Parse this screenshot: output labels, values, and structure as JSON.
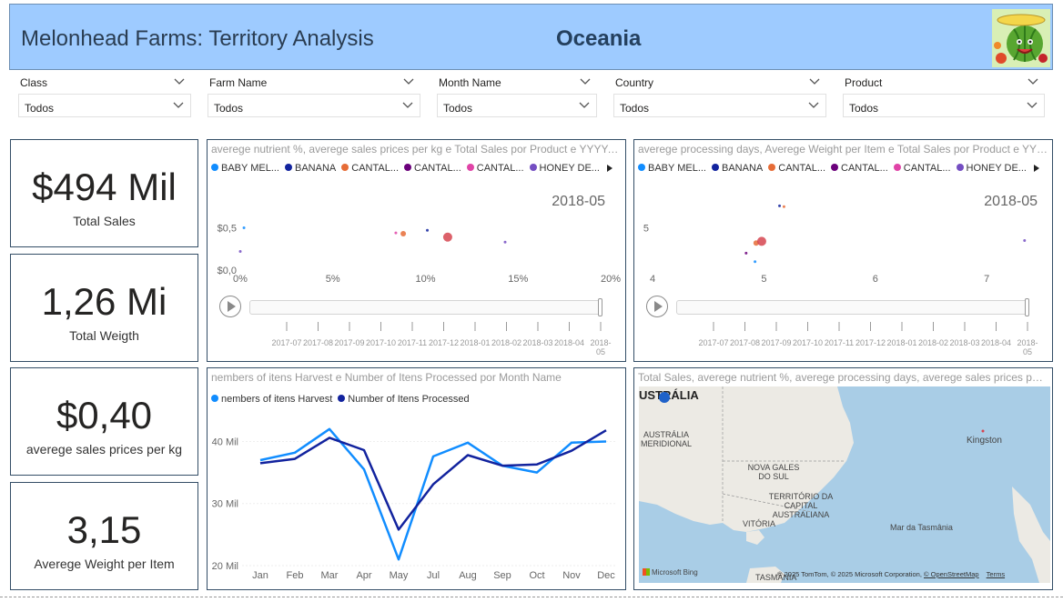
{
  "header": {
    "title": "Melonhead Farms: Territory Analysis",
    "region": "Oceania"
  },
  "slicers": [
    {
      "label": "Class",
      "value": "Todos"
    },
    {
      "label": "Farm Name",
      "value": "Todos"
    },
    {
      "label": "Month Name",
      "value": "Todos"
    },
    {
      "label": "Country",
      "value": "Todos"
    },
    {
      "label": "Product",
      "value": "Todos"
    }
  ],
  "cards": [
    {
      "value": "$494 Mil",
      "label": "Total Sales"
    },
    {
      "value": "1,26 Mi",
      "label": "Total Weigth"
    },
    {
      "value": "$0,40",
      "label": "averege sales prices per kg"
    },
    {
      "value": "3,15",
      "label": "Averege Weight per Item"
    }
  ],
  "legend_products": [
    {
      "name": "BABY MEL...",
      "color": "#118dff"
    },
    {
      "name": "BANANA",
      "color": "#12239e"
    },
    {
      "name": "CANTAL...",
      "color": "#e66c37"
    },
    {
      "name": "CANTAL...",
      "color": "#6b007b"
    },
    {
      "name": "CANTAL...",
      "color": "#e044a7"
    },
    {
      "name": "HONEY DE...",
      "color": "#744ec2"
    }
  ],
  "timeline": {
    "ticks": [
      "2017-07",
      "2017-08",
      "2017-09",
      "2017-10",
      "2017-11",
      "2017-12",
      "2018-01",
      "2018-02",
      "2018-03",
      "2018-04",
      "2018-05"
    ],
    "current_frame": "2018-05",
    "position": 1.0
  },
  "scatter1": {
    "title": "averege nutrient %, averege sales prices per kg e Total Sales por Product e YYYY-MM",
    "chart_data": {
      "type": "scatter",
      "x_ticks": [
        "0%",
        "5%",
        "10%",
        "15%",
        "20%"
      ],
      "y_ticks": [
        "$0,0",
        "$0,5"
      ],
      "xlim": [
        0,
        20
      ],
      "ylim": [
        0,
        1
      ],
      "points": [
        {
          "x": 0.2,
          "y": 0.5,
          "size": 1.5,
          "color": "#118dff"
        },
        {
          "x": 0.0,
          "y": 0.22,
          "size": 1.5,
          "color": "#744ec2"
        },
        {
          "x": 8.4,
          "y": 0.44,
          "size": 1.5,
          "color": "#e044a7"
        },
        {
          "x": 8.8,
          "y": 0.43,
          "size": 3,
          "color": "#e66c37"
        },
        {
          "x": 10.1,
          "y": 0.47,
          "size": 1.5,
          "color": "#12239e"
        },
        {
          "x": 11.2,
          "y": 0.39,
          "size": 5,
          "color": "#d64550"
        },
        {
          "x": 14.3,
          "y": 0.33,
          "size": 1.5,
          "color": "#744ec2"
        }
      ]
    }
  },
  "scatter2": {
    "title": "averege processing days, Averege Weight per Item e Total Sales por Product e YYYY-MM",
    "chart_data": {
      "type": "scatter",
      "x_ticks": [
        "4",
        "5",
        "6",
        "7"
      ],
      "y_ticks": [
        "5"
      ],
      "xlim": [
        4,
        7.35
      ],
      "ylim": [
        0,
        10
      ],
      "points": [
        {
          "x": 5.14,
          "y": 7.6,
          "size": 1.5,
          "color": "#12239e"
        },
        {
          "x": 5.18,
          "y": 7.5,
          "size": 1.5,
          "color": "#e66c37"
        },
        {
          "x": 4.93,
          "y": 3.2,
          "size": 3,
          "color": "#e66c37"
        },
        {
          "x": 4.98,
          "y": 3.4,
          "size": 5,
          "color": "#d64550"
        },
        {
          "x": 4.84,
          "y": 2.0,
          "size": 1.5,
          "color": "#6b007b"
        },
        {
          "x": 4.92,
          "y": 1.0,
          "size": 1.5,
          "color": "#118dff"
        },
        {
          "x": 7.34,
          "y": 3.5,
          "size": 1.5,
          "color": "#744ec2"
        }
      ]
    }
  },
  "line_chart": {
    "title": "nembers of itens Harvest e Number of Itens Processed por Month Name",
    "chart_data": {
      "type": "line",
      "categories": [
        "Jan",
        "Feb",
        "Mar",
        "Apr",
        "May",
        "Jul",
        "Aug",
        "Sep",
        "Oct",
        "Nov",
        "Dec"
      ],
      "y_ticks": [
        "20 Mil",
        "30 Mil",
        "40 Mil"
      ],
      "ylim": [
        20,
        43
      ],
      "series": [
        {
          "name": "nembers of itens Harvest",
          "color": "#118dff",
          "values": [
            37.0,
            38.2,
            42.0,
            35.5,
            21.0,
            37.6,
            39.8,
            36.1,
            35.0,
            39.8,
            40.0
          ]
        },
        {
          "name": "Number of Itens Processed",
          "color": "#12239e",
          "values": [
            36.5,
            37.2,
            40.6,
            38.6,
            25.8,
            33.1,
            37.8,
            36.1,
            36.3,
            38.5,
            41.8
          ]
        }
      ]
    }
  },
  "map": {
    "title": "Total Sales, averege nutrient %, averege processing days, averege sales prices per kg por Country",
    "labels": [
      {
        "text": "USTRÁLIA"
      },
      {
        "text": "AUSTRÁLIA MERIDIONAL"
      },
      {
        "text": "NOVA GALES DO SUL"
      },
      {
        "text": "TERRITÓRIO DA CAPITAL AUSTRALIANA"
      },
      {
        "text": "VITÓRIA"
      },
      {
        "text": "TASMÂNIA"
      },
      {
        "text": "Kingston"
      },
      {
        "text": "Mar da Tasmânia"
      }
    ],
    "brand": "Microsoft Bing",
    "copyright": "© 2025 TomTom, © 2025 Microsoft Corporation,",
    "osm_link": "© OpenStreetMap",
    "terms": "Terms"
  }
}
